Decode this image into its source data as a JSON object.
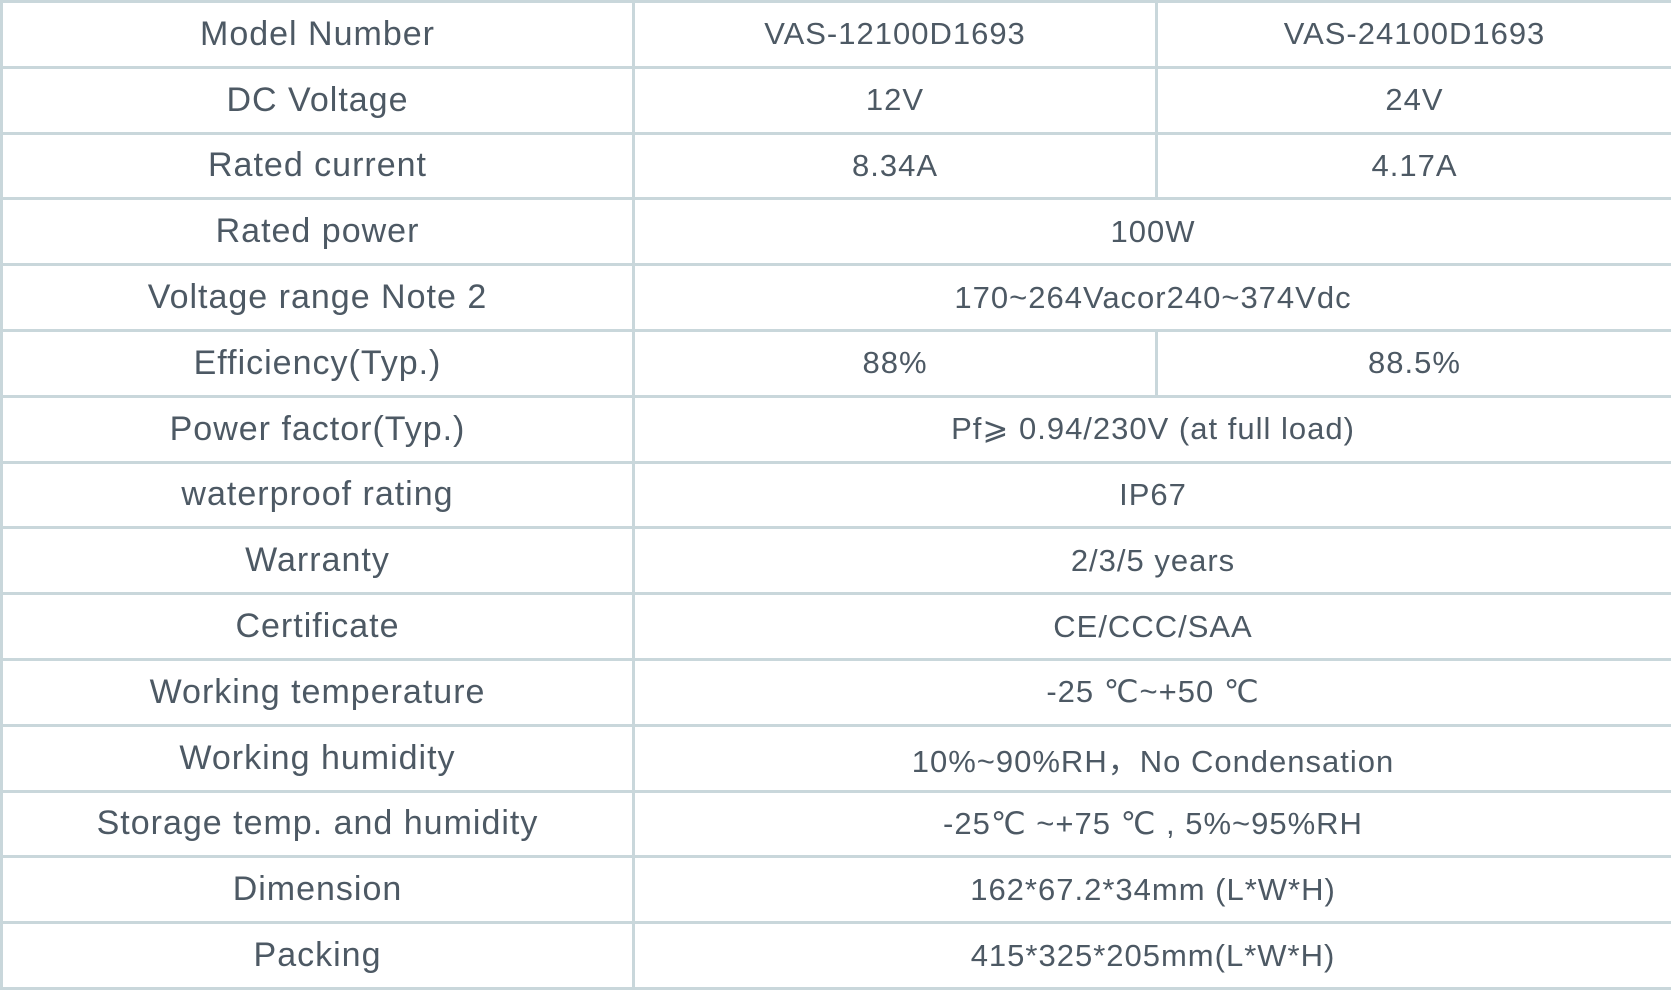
{
  "rows": [
    {
      "label": "Model Number",
      "values": [
        "VAS-12100D1693",
        "VAS-24100D1693"
      ]
    },
    {
      "label": "DC Voltage",
      "values": [
        "12V",
        "24V"
      ]
    },
    {
      "label": "Rated current",
      "values": [
        "8.34A",
        "4.17A"
      ]
    },
    {
      "label": "Rated power",
      "values": [
        "100W"
      ]
    },
    {
      "label": "Voltage range Note 2",
      "values": [
        "170~264Vacor240~374Vdc"
      ]
    },
    {
      "label": "Efficiency(Typ.)",
      "values": [
        "88%",
        "88.5%"
      ]
    },
    {
      "label": "Power factor(Typ.)",
      "values": [
        "Pf⩾ 0.94/230V (at full load)"
      ]
    },
    {
      "label": "waterproof  rating",
      "values": [
        "IP67"
      ]
    },
    {
      "label": "Warranty",
      "values": [
        "2/3/5 years"
      ]
    },
    {
      "label": "Certificate",
      "values": [
        "CE/CCC/SAA"
      ]
    },
    {
      "label": "Working temperature",
      "values": [
        "-25 ℃~+50 ℃"
      ]
    },
    {
      "label": "Working humidity",
      "values": [
        "10%~90%RH，No Condensation"
      ]
    },
    {
      "label": "Storage temp. and humidity",
      "values": [
        "-25℃ ~+75 ℃ , 5%~95%RH"
      ]
    },
    {
      "label": "Dimension",
      "values": [
        "162*67.2*34mm (L*W*H)"
      ]
    },
    {
      "label": "Packing",
      "values": [
        "415*325*205mm(L*W*H)"
      ]
    }
  ]
}
